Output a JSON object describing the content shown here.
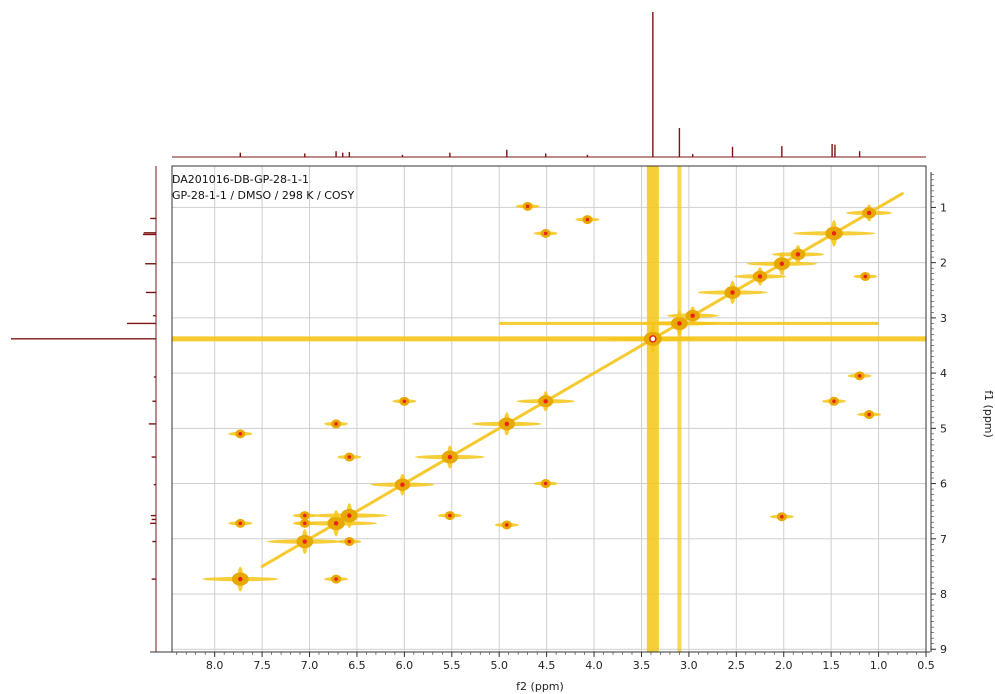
{
  "chart_data": {
    "type": "heatmap",
    "subtype": "2D NMR COSY contour plot with 1D projections",
    "info_lines": [
      "DA201016-DB-GP-28-1-1",
      "GP-28-1-1 / DMSO / 298 K / COSY"
    ],
    "xlabel": "f2 (ppm)",
    "ylabel": "f1 (ppm)",
    "xlim": [
      8.45,
      0.5
    ],
    "ylim": [
      0.25,
      9.05
    ],
    "x_ticks": [
      "8.0",
      "7.5",
      "7.0",
      "6.5",
      "6.0",
      "5.5",
      "5.0",
      "4.5",
      "4.0",
      "3.5",
      "3.0",
      "2.5",
      "2.0",
      "1.5",
      "1.0",
      "0.5"
    ],
    "y_ticks": [
      "1",
      "2",
      "3",
      "4",
      "5",
      "6",
      "7",
      "8",
      "9"
    ],
    "grid": true,
    "colors": {
      "contour": "#f5c518",
      "contour_dark": "#e8a800",
      "peak_center": "#e8231a",
      "projection": "#7a1414",
      "grid": "#cfcfcf"
    },
    "diagonal_peaks": [
      {
        "shift": 7.73,
        "intensity": 0.8
      },
      {
        "shift": 7.05,
        "intensity": 0.8
      },
      {
        "shift": 6.72,
        "intensity": 0.9
      },
      {
        "shift": 6.58,
        "intensity": 0.8
      },
      {
        "shift": 6.02,
        "intensity": 0.6
      },
      {
        "shift": 5.52,
        "intensity": 0.7
      },
      {
        "shift": 4.92,
        "intensity": 0.7
      },
      {
        "shift": 4.51,
        "intensity": 0.5
      },
      {
        "shift": 3.38,
        "intensity": 1.0
      },
      {
        "shift": 3.1,
        "intensity": 0.8
      },
      {
        "shift": 2.96,
        "intensity": 0.4
      },
      {
        "shift": 2.54,
        "intensity": 0.7
      },
      {
        "shift": 2.25,
        "intensity": 0.4
      },
      {
        "shift": 2.02,
        "intensity": 0.7
      },
      {
        "shift": 1.85,
        "intensity": 0.4
      },
      {
        "shift": 1.47,
        "intensity": 0.9
      },
      {
        "shift": 1.1,
        "intensity": 0.3
      }
    ],
    "cross_peaks": [
      {
        "f2": 4.51,
        "f1": 1.47
      },
      {
        "f2": 1.47,
        "f1": 4.51
      },
      {
        "f2": 4.07,
        "f1": 1.22
      },
      {
        "f2": 1.2,
        "f1": 4.05
      },
      {
        "f2": 1.14,
        "f1": 2.25
      },
      {
        "f2": 1.1,
        "f1": 4.75
      },
      {
        "f2": 6.0,
        "f1": 4.51
      },
      {
        "f2": 4.51,
        "f1": 6.0
      },
      {
        "f2": 6.58,
        "f1": 5.52
      },
      {
        "f2": 5.52,
        "f1": 6.58
      },
      {
        "f2": 7.73,
        "f1": 6.72
      },
      {
        "f2": 6.72,
        "f1": 7.73
      },
      {
        "f2": 7.05,
        "f1": 6.58
      },
      {
        "f2": 6.58,
        "f1": 7.05
      },
      {
        "f2": 7.05,
        "f1": 6.72
      },
      {
        "f2": 4.92,
        "f1": 6.75
      },
      {
        "f2": 6.72,
        "f1": 4.92
      },
      {
        "f2": 7.73,
        "f1": 5.1
      },
      {
        "f2": 4.7,
        "f1": 0.98
      },
      {
        "f2": 2.02,
        "f1": 6.6
      }
    ],
    "solvent_ridges": [
      {
        "shift": 3.38,
        "strength": 1.0
      },
      {
        "shift": 3.1,
        "strength": 0.6
      }
    ],
    "projection_f2": [
      {
        "shift": 7.73,
        "height": 0.03
      },
      {
        "shift": 7.05,
        "height": 0.025
      },
      {
        "shift": 6.72,
        "height": 0.04
      },
      {
        "shift": 6.65,
        "height": 0.03
      },
      {
        "shift": 6.58,
        "height": 0.035
      },
      {
        "shift": 6.02,
        "height": 0.015
      },
      {
        "shift": 5.52,
        "height": 0.03
      },
      {
        "shift": 4.92,
        "height": 0.05
      },
      {
        "shift": 4.51,
        "height": 0.025
      },
      {
        "shift": 4.07,
        "height": 0.015
      },
      {
        "shift": 3.38,
        "height": 1.0
      },
      {
        "shift": 3.1,
        "height": 0.2
      },
      {
        "shift": 2.96,
        "height": 0.02
      },
      {
        "shift": 2.54,
        "height": 0.07
      },
      {
        "shift": 2.02,
        "height": 0.075
      },
      {
        "shift": 1.49,
        "height": 0.09
      },
      {
        "shift": 1.46,
        "height": 0.085
      },
      {
        "shift": 1.2,
        "height": 0.04
      }
    ]
  }
}
